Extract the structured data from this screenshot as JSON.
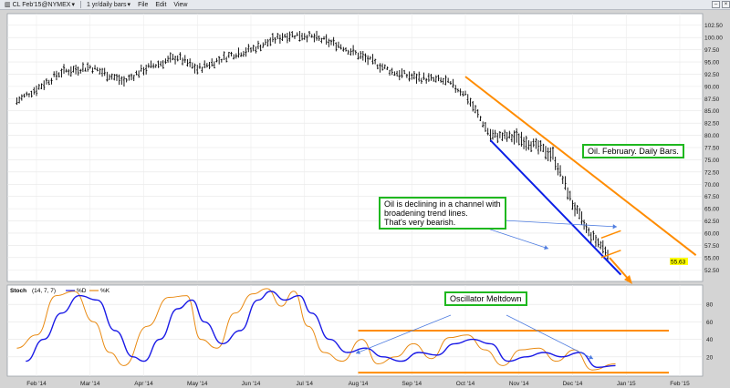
{
  "toolbar": {
    "symbol": "CL Feb'15@NYMEX",
    "interval": "1 yr/daily bars",
    "menu": [
      "File",
      "Edit",
      "View"
    ],
    "caret": "▾"
  },
  "annotations": {
    "oil_daily": "Oil. February. Daily Bars.",
    "channel": [
      "Oil is declining in a channel with",
      "broadening trend lines.",
      "That's very bearish."
    ],
    "oscillator": "Oscillator Meltdown"
  },
  "indicator": {
    "name": "Stoch",
    "params": "(14, 7, 7)",
    "legend": [
      "%D",
      "%K"
    ]
  },
  "colors": {
    "price_bars": "#000000",
    "upper_trend": "#ff8c00",
    "lower_trend": "#0a1ee6",
    "arrow": "#4f7de0",
    "stoch_d": "#1a1ae6",
    "stoch_k": "#e98a12",
    "callout_border": "#1fb81f",
    "last_price_bg": "#ffff00"
  },
  "chart_data": [
    {
      "type": "bar",
      "subtype": "ohlc",
      "title": "",
      "x_tick_labels": [
        "Feb '14",
        "Mar '14",
        "Apr '14",
        "May '14",
        "Jun '14",
        "Jul '14",
        "Aug '14",
        "Sep '14",
        "Oct '14",
        "Nov '14",
        "Dec '14",
        "Jan '15",
        "Feb '15"
      ],
      "y_ticks": [
        52.5,
        55,
        57.5,
        60,
        62.5,
        65,
        67.5,
        70,
        72.5,
        75,
        77.5,
        80,
        82.5,
        85,
        87.5,
        90,
        92.5,
        95,
        97.5,
        100,
        102.5
      ],
      "y_tick_labels": [
        "52.50",
        "55.00",
        "57.50",
        "60.00",
        "62.50",
        "65.00",
        "67.50",
        "70.00",
        "72.50",
        "75.00",
        "77.50",
        "80.00",
        "82.50",
        "85.00",
        "87.50",
        "90.00",
        "92.50",
        "95.00",
        "97.50",
        "100.00",
        "102.50"
      ],
      "ylim": [
        50.5,
        104.5
      ],
      "grid": true,
      "y_axis_side": "right",
      "last_price": 55.63,
      "last_price_label": "55.63",
      "series": [
        {
          "values_monthly_close": [
            {
              "x": "Jan 20 '14",
              "y": 87.0
            },
            {
              "x": "Feb '14",
              "y": 89.5
            },
            {
              "x": "Feb 15 '14",
              "y": 93.0
            },
            {
              "x": "Mar '14",
              "y": 94.0
            },
            {
              "x": "Mar 20 '14",
              "y": 91.0
            },
            {
              "x": "Apr '14",
              "y": 93.5
            },
            {
              "x": "Apr 20 '14",
              "y": 96.0
            },
            {
              "x": "May '14",
              "y": 93.5
            },
            {
              "x": "May 20 '14",
              "y": 96.5
            },
            {
              "x": "Jun '14",
              "y": 97.5
            },
            {
              "x": "Jun 20 '14",
              "y": 100.5
            },
            {
              "x": "Jul '14",
              "y": 100.5
            },
            {
              "x": "Jul 20 '14",
              "y": 98.5
            },
            {
              "x": "Aug '14",
              "y": 96.5
            },
            {
              "x": "Aug 20 '14",
              "y": 93.0
            },
            {
              "x": "Sep '14",
              "y": 92.0
            },
            {
              "x": "Sep 20 '14",
              "y": 91.0
            },
            {
              "x": "Oct '14",
              "y": 88.5
            },
            {
              "x": "Oct 15 '14",
              "y": 80.0
            },
            {
              "x": "Nov '14",
              "y": 79.5
            },
            {
              "x": "Nov 20 '14",
              "y": 76.0
            },
            {
              "x": "Dec '14",
              "y": 66.0
            },
            {
              "x": "Dec 10 '14",
              "y": 60.0
            },
            {
              "x": "Dec 22 '14",
              "y": 55.6
            }
          ]
        }
      ],
      "trend_lines": {
        "upper": [
          {
            "x": "Oct 1 '14",
            "y": 92.0
          },
          {
            "x": "Feb 10 '15",
            "y": 55.5
          }
        ],
        "lower": [
          {
            "x": "Oct 15 '14",
            "y": 79.0
          },
          {
            "x": "Dec 28 '14",
            "y": 51.5
          }
        ],
        "small_upper": [
          {
            "x": "Dec 17 '14",
            "y": 59.0
          },
          {
            "x": "Dec 28 '14",
            "y": 60.5
          }
        ],
        "small_lower": [
          {
            "x": "Dec 17 '14",
            "y": 55.0
          },
          {
            "x": "Dec 28 '14",
            "y": 56.5
          }
        ]
      }
    },
    {
      "type": "line",
      "title": "",
      "y_ticks": [
        20,
        40,
        60,
        80
      ],
      "y_tick_labels": [
        "20",
        "40",
        "60",
        "80"
      ],
      "ylim": [
        0,
        100
      ],
      "y_axis_side": "right",
      "grid": true,
      "reference_lines": [
        {
          "y": 50,
          "x_start": "Aug '14",
          "x_end": "Feb '15"
        },
        {
          "y": 2,
          "x_start": "Aug '14",
          "x_end": "Feb '15"
        }
      ],
      "series": [
        {
          "name": "%D",
          "values": [
            {
              "x": "Jan 25 '14",
              "y": 15
            },
            {
              "x": "Feb 5 '14",
              "y": 40
            },
            {
              "x": "Feb 15 '14",
              "y": 70
            },
            {
              "x": "Feb 25 '14",
              "y": 90
            },
            {
              "x": "Mar 5 '14",
              "y": 85
            },
            {
              "x": "Mar 15 '14",
              "y": 50
            },
            {
              "x": "Mar 25 '14",
              "y": 20
            },
            {
              "x": "Apr 1 '14",
              "y": 15
            },
            {
              "x": "Apr 10 '14",
              "y": 40
            },
            {
              "x": "Apr 20 '14",
              "y": 75
            },
            {
              "x": "Apr 28 '14",
              "y": 85
            },
            {
              "x": "May 5 '14",
              "y": 60
            },
            {
              "x": "May 15 '14",
              "y": 35
            },
            {
              "x": "May 25 '14",
              "y": 50
            },
            {
              "x": "Jun 5 '14",
              "y": 85
            },
            {
              "x": "Jun 12 '14",
              "y": 95
            },
            {
              "x": "Jun 20 '14",
              "y": 85
            },
            {
              "x": "Jun 28 '14",
              "y": 90
            },
            {
              "x": "Jul 5 '14",
              "y": 70
            },
            {
              "x": "Jul 15 '14",
              "y": 40
            },
            {
              "x": "Jul 25 '14",
              "y": 25
            },
            {
              "x": "Aug 5 '14",
              "y": 30
            },
            {
              "x": "Aug 15 '14",
              "y": 20
            },
            {
              "x": "Aug 25 '14",
              "y": 15
            },
            {
              "x": "Sep 5 '14",
              "y": 25
            },
            {
              "x": "Sep 15 '14",
              "y": 22
            },
            {
              "x": "Sep 25 '14",
              "y": 35
            },
            {
              "x": "Oct 5 '14",
              "y": 40
            },
            {
              "x": "Oct 15 '14",
              "y": 35
            },
            {
              "x": "Oct 25 '14",
              "y": 15
            },
            {
              "x": "Nov 5 '14",
              "y": 20
            },
            {
              "x": "Nov 15 '14",
              "y": 25
            },
            {
              "x": "Nov 25 '14",
              "y": 20
            },
            {
              "x": "Dec 5 '14",
              "y": 25
            },
            {
              "x": "Dec 15 '14",
              "y": 8
            },
            {
              "x": "Dec 25 '14",
              "y": 10
            }
          ]
        },
        {
          "name": "%K",
          "values": [
            {
              "x": "Jan 20 '14",
              "y": 30
            },
            {
              "x": "Feb 1 '14",
              "y": 45
            },
            {
              "x": "Feb 12 '14",
              "y": 90
            },
            {
              "x": "Feb 22 '14",
              "y": 95
            },
            {
              "x": "Mar 3 '14",
              "y": 60
            },
            {
              "x": "Mar 12 '14",
              "y": 25
            },
            {
              "x": "Mar 20 '14",
              "y": 10
            },
            {
              "x": "Apr 3 '14",
              "y": 55
            },
            {
              "x": "Apr 15 '14",
              "y": 88
            },
            {
              "x": "Apr 25 '14",
              "y": 90
            },
            {
              "x": "May 3 '14",
              "y": 40
            },
            {
              "x": "May 12 '14",
              "y": 30
            },
            {
              "x": "May 22 '14",
              "y": 70
            },
            {
              "x": "Jun 2 '14",
              "y": 92
            },
            {
              "x": "Jun 10 '14",
              "y": 98
            },
            {
              "x": "Jun 18 '14",
              "y": 78
            },
            {
              "x": "Jun 25 '14",
              "y": 95
            },
            {
              "x": "Jul 3 '14",
              "y": 55
            },
            {
              "x": "Jul 12 '14",
              "y": 25
            },
            {
              "x": "Jul 22 '14",
              "y": 15
            },
            {
              "x": "Aug 3 '14",
              "y": 40
            },
            {
              "x": "Aug 12 '14",
              "y": 12
            },
            {
              "x": "Aug 22 '14",
              "y": 20
            },
            {
              "x": "Sep 2 '14",
              "y": 35
            },
            {
              "x": "Sep 12 '14",
              "y": 18
            },
            {
              "x": "Sep 22 '14",
              "y": 42
            },
            {
              "x": "Oct 2 '14",
              "y": 45
            },
            {
              "x": "Oct 12 '14",
              "y": 28
            },
            {
              "x": "Oct 22 '14",
              "y": 10
            },
            {
              "x": "Nov 2 '14",
              "y": 28
            },
            {
              "x": "Nov 12 '14",
              "y": 30
            },
            {
              "x": "Nov 22 '14",
              "y": 15
            },
            {
              "x": "Dec 2 '14",
              "y": 28
            },
            {
              "x": "Dec 12 '14",
              "y": 5
            },
            {
              "x": "Dec 25 '14",
              "y": 12
            }
          ]
        }
      ]
    }
  ]
}
